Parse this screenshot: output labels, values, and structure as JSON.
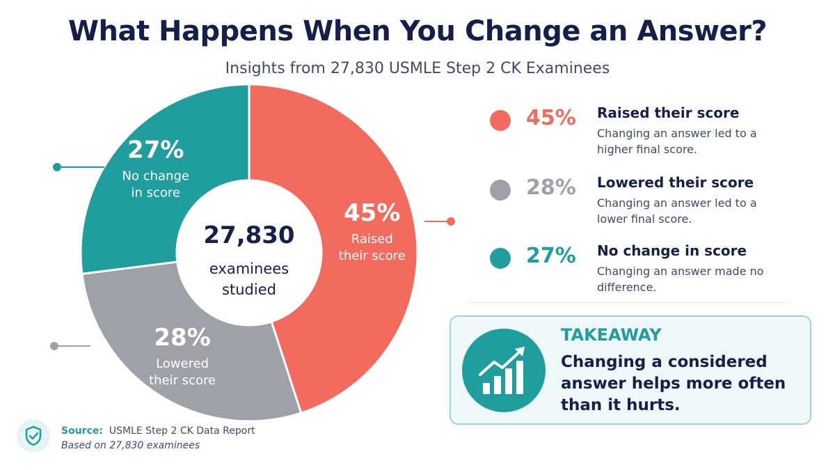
{
  "header": {
    "title": "What Happens When You Change an Answer?",
    "subtitle": "Insights from 27,830 USMLE Step 2 CK Examinees"
  },
  "chart_data": {
    "type": "pie",
    "donut": true,
    "center": {
      "value": "27,830",
      "line1": "examinees",
      "line2": "studied"
    },
    "slices": [
      {
        "label": "Raised their score",
        "value": 45,
        "display": "45%",
        "line1": "Raised",
        "line2": "their score",
        "color": "#f26b5e"
      },
      {
        "label": "Lowered their score",
        "value": 28,
        "display": "28%",
        "line1": "Lowered",
        "line2": "their score",
        "color": "#9ea1a8"
      },
      {
        "label": "No change in score",
        "value": 27,
        "display": "27%",
        "line1": "No change",
        "line2": "in score",
        "color": "#1f9e9d"
      }
    ]
  },
  "legend": [
    {
      "pct": "45%",
      "title": "Raised their score",
      "desc": "Changing an answer led to a higher final score.",
      "color": "#f26b5e"
    },
    {
      "pct": "28%",
      "title": "Lowered their score",
      "desc": "Changing an answer led to a lower final score.",
      "color": "#9ea1a8"
    },
    {
      "pct": "27%",
      "title": "No change in score",
      "desc": "Changing an answer made no difference.",
      "color": "#1f9e9d"
    }
  ],
  "takeaway": {
    "title": "TAKEAWAY",
    "text": "Changing a considered answer helps more often than it hurts.",
    "icon": "chart-growth-icon"
  },
  "source": {
    "label": "Source:",
    "text": "USMLE Step 2 CK Data Report",
    "note": "Based on 27,830 examinees",
    "icon": "shield-check-icon"
  }
}
